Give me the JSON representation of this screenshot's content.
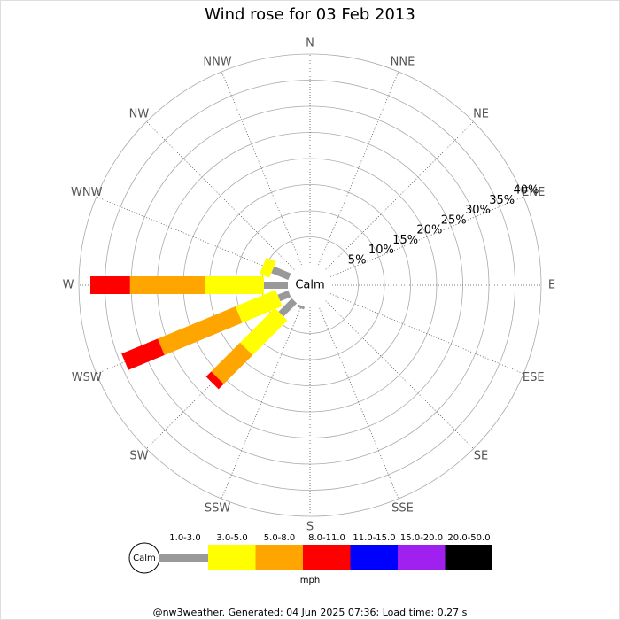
{
  "chart_data": {
    "type": "windrose",
    "title": "Wind rose for 03 Feb 2013",
    "directions": [
      "N",
      "NNE",
      "NE",
      "ENE",
      "E",
      "ESE",
      "SE",
      "SSE",
      "S",
      "SSW",
      "SW",
      "WSW",
      "W",
      "WNW",
      "NW",
      "NNW"
    ],
    "center_label": "Calm",
    "rlim": [
      0,
      40
    ],
    "rticks": [
      {
        "value": 5,
        "label": "5%"
      },
      {
        "value": 10,
        "label": "10%"
      },
      {
        "value": 15,
        "label": "15%"
      },
      {
        "value": 20,
        "label": "20%"
      },
      {
        "value": 25,
        "label": "25%"
      },
      {
        "value": 30,
        "label": "30%"
      },
      {
        "value": 35,
        "label": "35%"
      },
      {
        "value": 40,
        "label": "40%"
      }
    ],
    "series": [
      {
        "name": "1.0-3.0",
        "color": "#999999",
        "values": [
          0,
          0,
          0,
          0,
          0,
          0,
          0,
          0,
          0,
          0.5,
          3.6,
          2.2,
          4.6,
          3.5,
          0,
          0
        ]
      },
      {
        "name": "3.0-5.0",
        "color": "#ffff00",
        "values": [
          0,
          0,
          0,
          0,
          0,
          0,
          0,
          0,
          0,
          0,
          9.4,
          8.3,
          11.3,
          2.0,
          0,
          0
        ]
      },
      {
        "name": "5.0-8.0",
        "color": "#ffa500",
        "values": [
          0,
          0,
          0,
          0,
          0,
          0,
          0,
          0,
          0,
          0,
          7.8,
          16.1,
          14.3,
          0,
          0,
          0
        ]
      },
      {
        "name": "8.0-11.0",
        "color": "#ff0000",
        "values": [
          0,
          0,
          0,
          0,
          0,
          0,
          0,
          0,
          0,
          0,
          1.4,
          7.5,
          7.6,
          0,
          0,
          0
        ]
      },
      {
        "name": "11.0-15.0",
        "color": "#0000ff",
        "values": [
          0,
          0,
          0,
          0,
          0,
          0,
          0,
          0,
          0,
          0,
          0,
          0,
          0,
          0,
          0,
          0
        ]
      },
      {
        "name": "15.0-20.0",
        "color": "#a020f0",
        "values": [
          0,
          0,
          0,
          0,
          0,
          0,
          0,
          0,
          0,
          0,
          0,
          0,
          0,
          0,
          0,
          0
        ]
      },
      {
        "name": "20.0-50.0",
        "color": "#000000",
        "values": [
          0,
          0,
          0,
          0,
          0,
          0,
          0,
          0,
          0,
          0,
          0,
          0,
          0,
          0,
          0,
          0
        ]
      }
    ],
    "legend_unit": "mph",
    "footer": "@nw3weather. Generated: 04 Jun 2025 07:36; Load time: 0.27 s"
  }
}
